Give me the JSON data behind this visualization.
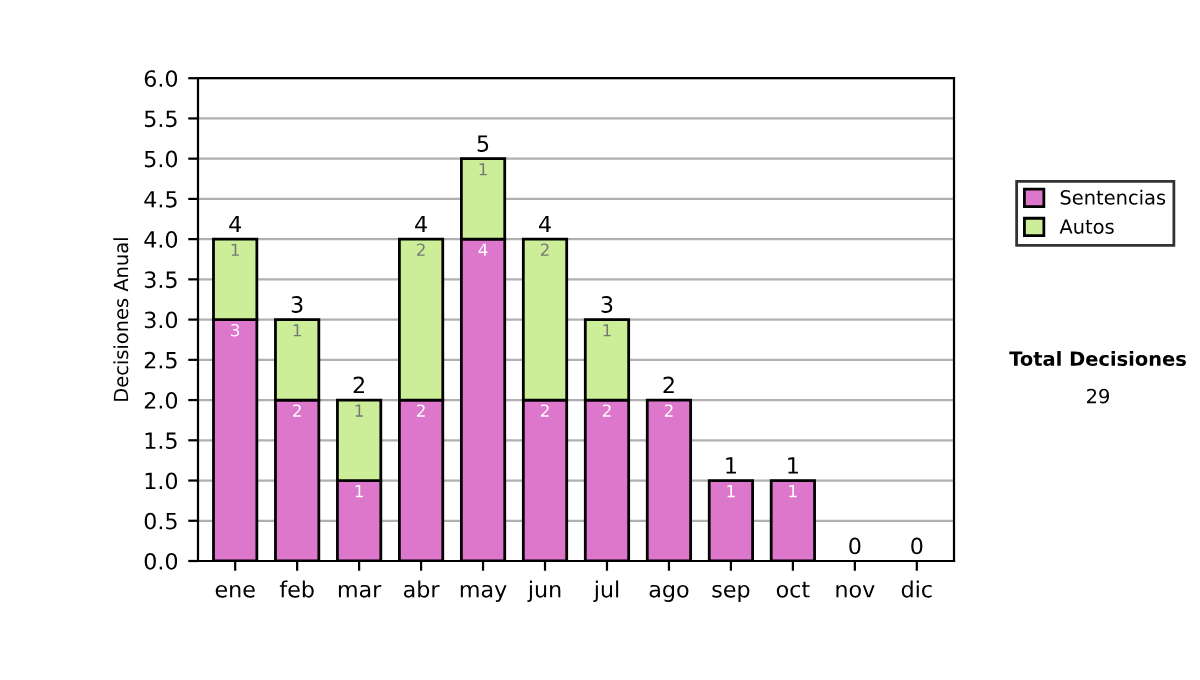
{
  "chart_data": {
    "type": "bar",
    "stacked": true,
    "ylabel": "Decisiones Anual",
    "categories": [
      "ene",
      "feb",
      "mar",
      "abr",
      "may",
      "jun",
      "jul",
      "ago",
      "sep",
      "oct",
      "nov",
      "dic"
    ],
    "series": [
      {
        "name": "Sentencias",
        "color": "#dd77cc",
        "values": [
          3,
          2,
          1,
          2,
          4,
          2,
          2,
          2,
          1,
          1,
          0,
          0
        ],
        "value_labels": [
          "3",
          "2",
          "1",
          "2",
          "4",
          "2",
          "2",
          "2",
          "1",
          "1",
          null,
          null
        ]
      },
      {
        "name": "Autos",
        "color": "#ccee99",
        "values": [
          1,
          1,
          1,
          2,
          1,
          2,
          1,
          0,
          0,
          0,
          0,
          0
        ],
        "value_labels": [
          "1",
          "1",
          "1",
          "2",
          "1",
          "2",
          "1",
          null,
          null,
          null,
          null,
          null
        ]
      }
    ],
    "totals": [
      "4",
      "3",
      "2",
      "4",
      "5",
      "4",
      "3",
      "2",
      "1",
      "1",
      "0",
      "0"
    ],
    "ylim": [
      0,
      6
    ],
    "yticks": [
      {
        "value": 0,
        "label": "0.0"
      },
      {
        "value": 0.5,
        "label": "0.5"
      },
      {
        "value": 1,
        "label": "1.0"
      },
      {
        "value": 1.5,
        "label": "1.5"
      },
      {
        "value": 2,
        "label": "2.0"
      },
      {
        "value": 2.5,
        "label": "2.5"
      },
      {
        "value": 3,
        "label": "3.0"
      },
      {
        "value": 3.5,
        "label": "3.5"
      },
      {
        "value": 4,
        "label": "4.0"
      },
      {
        "value": 4.5,
        "label": "4.5"
      },
      {
        "value": 5,
        "label": "5.0"
      },
      {
        "value": 5.5,
        "label": "5.5"
      },
      {
        "value": 6,
        "label": "6.0"
      }
    ],
    "grid": "y",
    "legend": "right",
    "annotations": [
      "Total Decisiones",
      "29"
    ]
  }
}
